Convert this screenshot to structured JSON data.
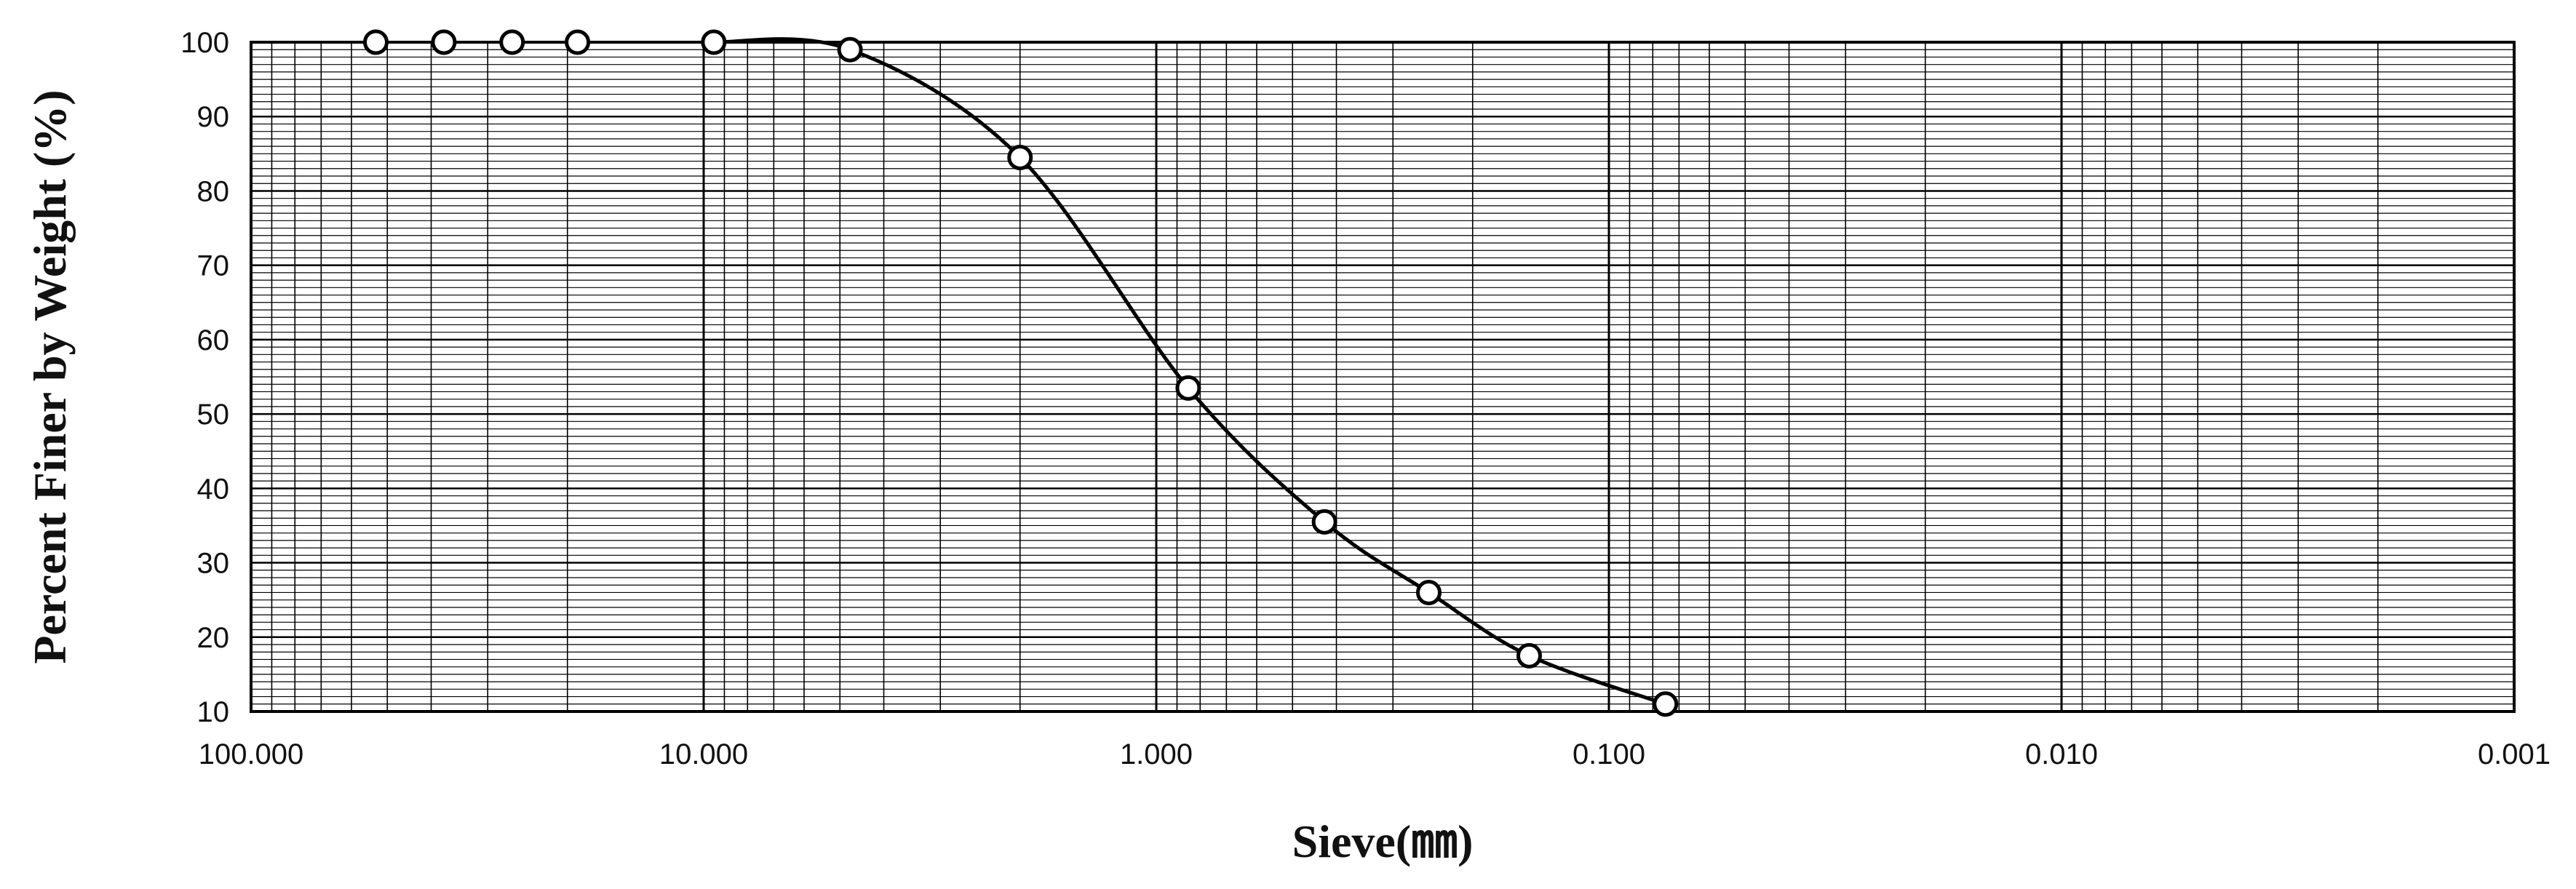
{
  "chart_data": {
    "type": "scatter",
    "title": "",
    "xlabel": "Sieve(㎜)",
    "ylabel": "Percent Finer by Weight (%)",
    "x_scale": "log",
    "x_reversed": true,
    "xlim": [
      100,
      0.001
    ],
    "ylim": [
      10,
      100
    ],
    "x_tick_values": [
      100,
      10,
      1,
      0.1,
      0.01,
      0.001
    ],
    "x_tick_labels": [
      "100.000",
      "10.000",
      "1.000",
      "0.100",
      "0.010",
      "0.001"
    ],
    "y_tick_values": [
      10,
      20,
      30,
      40,
      50,
      60,
      70,
      80,
      90,
      100
    ],
    "y_tick_labels": [
      "10",
      "20",
      "30",
      "40",
      "50",
      "60",
      "70",
      "80",
      "90",
      "100"
    ],
    "grid": true,
    "legend": "none",
    "series": [
      {
        "marker": "open-circle",
        "line": "smooth",
        "x": [
          53,
          37.5,
          26.5,
          19,
          9.5,
          4.75,
          2.0,
          0.85,
          0.425,
          0.25,
          0.15,
          0.075
        ],
        "y": [
          100,
          100,
          100,
          100,
          100,
          99,
          84.5,
          53.5,
          35.5,
          26,
          17.5,
          11
        ]
      }
    ],
    "colors": {
      "line": "#000000",
      "grid": "#000000",
      "background": "#ffffff"
    }
  }
}
